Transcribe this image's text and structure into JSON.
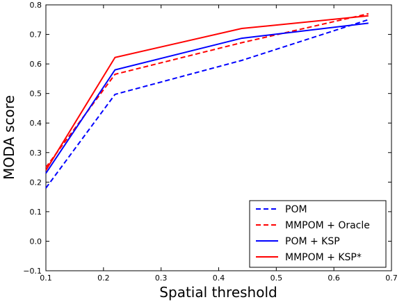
{
  "chart_data": {
    "type": "line",
    "title": "",
    "xlabel": "Spatial threshold",
    "ylabel": "MODA score",
    "xlim": [
      0.1,
      0.7
    ],
    "ylim": [
      -0.1,
      0.8
    ],
    "xticks": [
      0.1,
      0.2,
      0.3,
      0.4,
      0.5,
      0.6,
      0.7
    ],
    "yticks": [
      -0.1,
      0.0,
      0.1,
      0.2,
      0.3,
      0.4,
      0.5,
      0.6,
      0.7,
      0.8
    ],
    "xtick_labels": [
      "0.1",
      "0.2",
      "0.3",
      "0.4",
      "0.5",
      "0.6",
      "0.7"
    ],
    "ytick_labels": [
      "−0.1",
      "0.0",
      "0.1",
      "0.2",
      "0.3",
      "0.4",
      "0.5",
      "0.6",
      "0.7",
      "0.8"
    ],
    "grid": false,
    "legend_position": "bottom-right",
    "series": [
      {
        "name": "POM",
        "color": "#0000ff",
        "dash": "dashed",
        "x": [
          0.1,
          0.22,
          0.44,
          0.66
        ],
        "y": [
          0.18,
          0.497,
          0.612,
          0.75
        ]
      },
      {
        "name": "MMPOM + Oracle",
        "color": "#ff0000",
        "dash": "dashed",
        "x": [
          0.1,
          0.22,
          0.44,
          0.66
        ],
        "y": [
          0.25,
          0.565,
          0.672,
          0.77
        ]
      },
      {
        "name": "POM + KSP",
        "color": "#0000ff",
        "dash": "solid",
        "x": [
          0.1,
          0.22,
          0.44,
          0.66
        ],
        "y": [
          0.23,
          0.58,
          0.687,
          0.738
        ]
      },
      {
        "name": "MMPOM + KSP*",
        "color": "#ff0000",
        "dash": "solid",
        "x": [
          0.1,
          0.22,
          0.44,
          0.66
        ],
        "y": [
          0.24,
          0.622,
          0.72,
          0.763
        ]
      }
    ]
  }
}
